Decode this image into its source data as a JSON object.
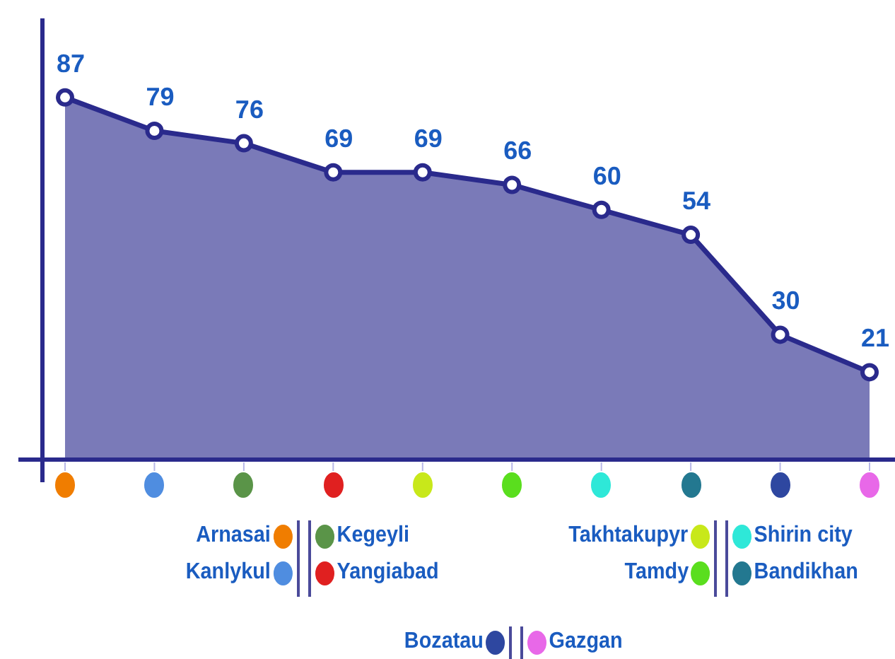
{
  "chart_data": {
    "type": "area",
    "categories": [
      null,
      null,
      null,
      null,
      null,
      null,
      null,
      null,
      null,
      null
    ],
    "values": [
      87,
      79,
      76,
      69,
      69,
      66,
      60,
      54,
      30,
      21
    ],
    "color": "#7a7ab8",
    "ylim": [
      0,
      106
    ],
    "tick_labels": false,
    "data_labels": true,
    "marker": "circle",
    "annotations": [
      "Arnasai",
      "Kanlykul",
      "Kegeyli",
      "Yangiabad",
      "Takhtakupyr",
      "Tamdy",
      "Shirin city",
      "Bandikhan",
      "Bozatau",
      "Gazgan"
    ]
  }
}
